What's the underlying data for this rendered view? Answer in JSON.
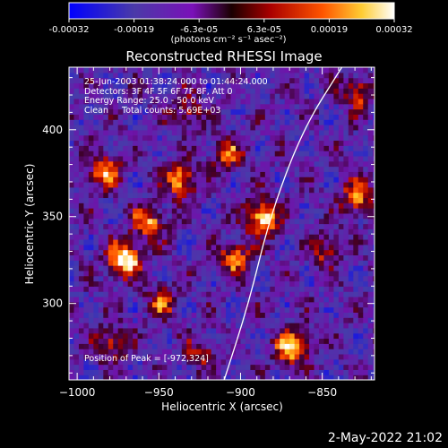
{
  "colorbar": {
    "ticks": [
      "-0.00032",
      "-0.00019",
      "-6.3e-05",
      "6.3e-05",
      "0.00019",
      "0.00032"
    ],
    "unit_label": "(photons cm⁻² s⁻¹ asec⁻²)",
    "colors": [
      "#0000ff",
      "#5a2d8c",
      "#7b00c8",
      "#220000",
      "#cc0000",
      "#ff8800",
      "#ffff66",
      "#ffffff"
    ]
  },
  "info": {
    "line1": "25-Jun-2003 01:38:24.000 to 01:44:24.000",
    "line2": "Detectors: 3F 4F 5F 6F 7F 8F, Att 0",
    "line3": "Energy Range: 25.0 - 50.0 keV",
    "line4": "Clean     Total counts: 5.69E+03",
    "peak": "Position of Peak = [-972,324]"
  },
  "timestamp": "2-May-2022 21:02",
  "chart_data": {
    "type": "heatmap",
    "title": "Reconstructed RHESSI Image",
    "xlabel": "Heliocentric X (arcsec)",
    "ylabel": "Heliocentric Y (arcsec)",
    "xlim": [
      -1005,
      -818
    ],
    "ylim": [
      256,
      436
    ],
    "xticks": [
      -1000,
      -950,
      -900,
      -850
    ],
    "yticks": [
      300,
      350,
      400
    ],
    "xtick_labels": [
      "−1000",
      "−950",
      "−900",
      "−850"
    ],
    "ytick_labels": [
      "300",
      "350",
      "400"
    ],
    "peak_position": [
      -972,
      324
    ],
    "color_range": [
      -0.00032,
      0.00032
    ],
    "hotspots": [
      {
        "x": -972,
        "y": 324,
        "value": 0.00032
      },
      {
        "x": -888,
        "y": 348,
        "value": 0.00028
      },
      {
        "x": -870,
        "y": 274,
        "value": 0.00028
      },
      {
        "x": -938,
        "y": 370,
        "value": 0.00024
      },
      {
        "x": -985,
        "y": 375,
        "value": 0.00022
      },
      {
        "x": -958,
        "y": 345,
        "value": 0.00022
      },
      {
        "x": -905,
        "y": 325,
        "value": 0.0002
      },
      {
        "x": -910,
        "y": 385,
        "value": 0.00018
      },
      {
        "x": -830,
        "y": 360,
        "value": 0.0002
      },
      {
        "x": -950,
        "y": 300,
        "value": 0.00016
      },
      {
        "x": -830,
        "y": 420,
        "value": 0.00016
      },
      {
        "x": -980,
        "y": 275,
        "value": 0.00016
      },
      {
        "x": -935,
        "y": 410,
        "value": 0.00014
      },
      {
        "x": -850,
        "y": 330,
        "value": 0.00014
      },
      {
        "x": -925,
        "y": 270,
        "value": 0.00012
      }
    ],
    "limb_curve": [
      [
        -910,
        256
      ],
      [
        -895,
        300
      ],
      [
        -882,
        350
      ],
      [
        -862,
        400
      ],
      [
        -838,
        436
      ]
    ]
  }
}
